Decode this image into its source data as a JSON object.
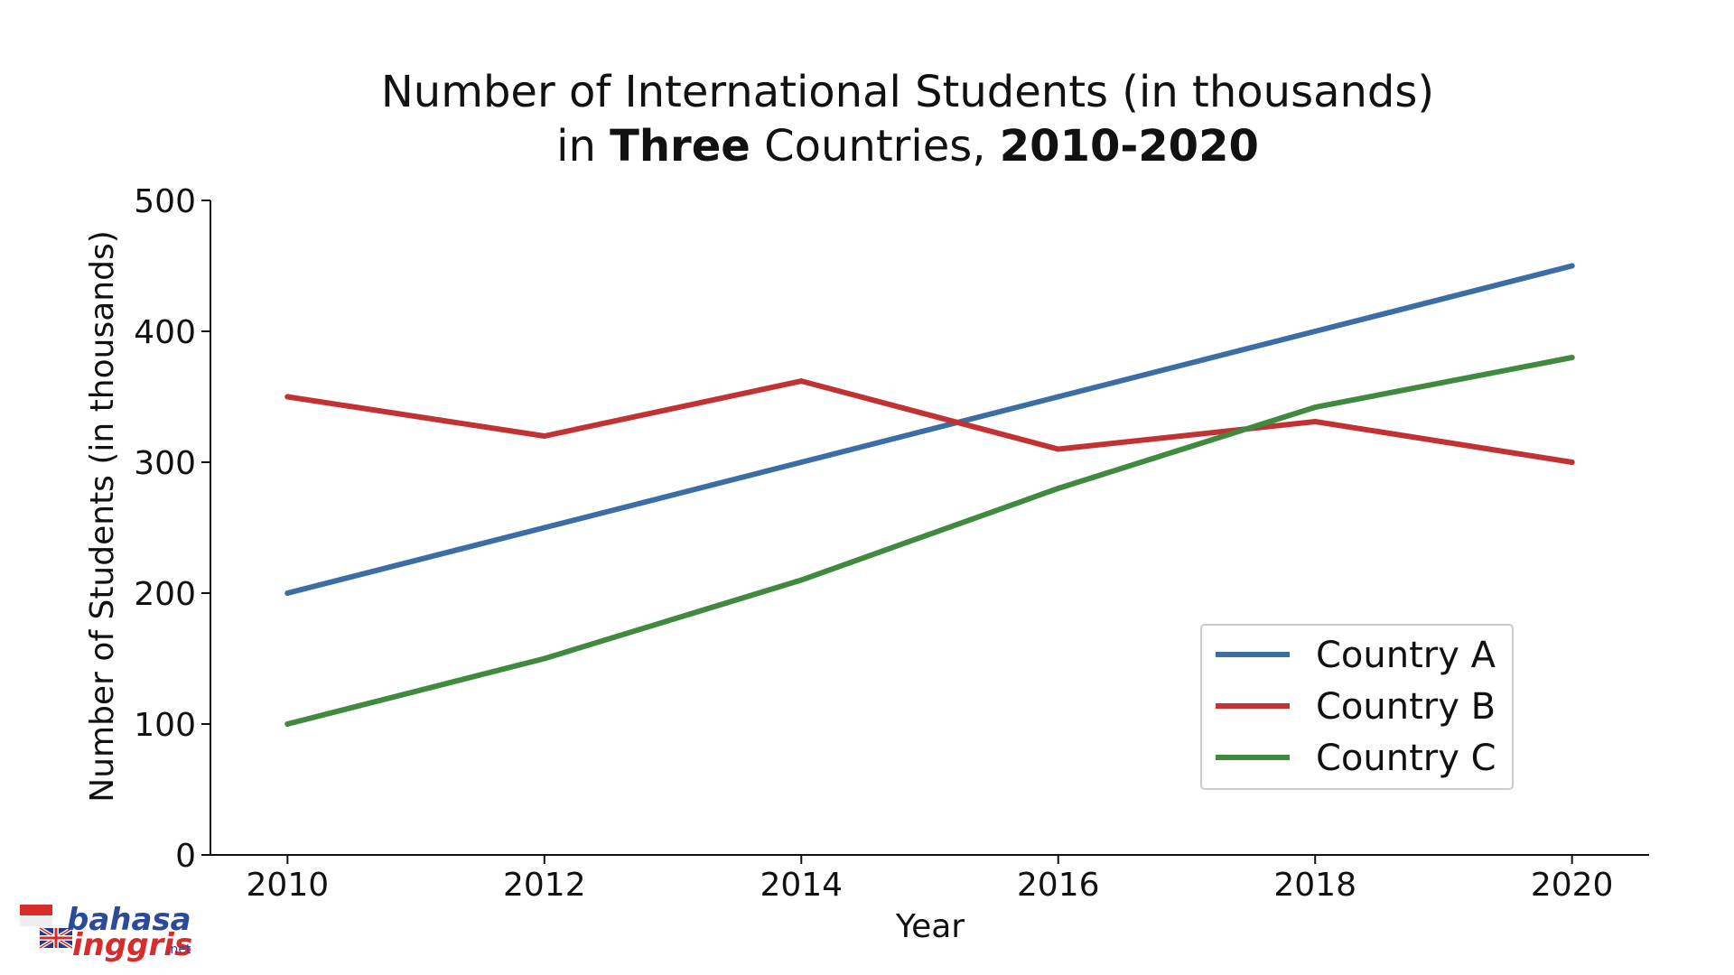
{
  "chart_data": {
    "type": "line",
    "title_line1": "Number of International Students (in thousands)",
    "title_line2_parts": [
      {
        "text": "in ",
        "bold": false
      },
      {
        "text": "Three",
        "bold": true
      },
      {
        "text": " Countries, ",
        "bold": false
      },
      {
        "text": "2010-2020",
        "bold": true
      }
    ],
    "xlabel": "Year",
    "ylabel": "Number of Students (in thousands)",
    "x": [
      2010,
      2012,
      2014,
      2016,
      2018,
      2020
    ],
    "x_ticks": [
      "2010",
      "2012",
      "2014",
      "2016",
      "2018",
      "2020"
    ],
    "xlim": [
      2009.4,
      2020.6
    ],
    "y_ticks": [
      "0",
      "100",
      "200",
      "300",
      "400",
      "500"
    ],
    "ylim": [
      0,
      500
    ],
    "grid": false,
    "legend_position": "lower-right",
    "series": [
      {
        "name": "Country A",
        "color": "#3a6ea5",
        "values": [
          200,
          250,
          300,
          350,
          400,
          450
        ]
      },
      {
        "name": "Country B",
        "color": "#c33232",
        "values": [
          350,
          320,
          362,
          310,
          331,
          300
        ]
      },
      {
        "name": "Country C",
        "color": "#3f8a3f",
        "values": [
          100,
          150,
          210,
          280,
          342,
          380
        ]
      }
    ]
  },
  "watermark": {
    "line1": "bahasa",
    "line2": "inggris",
    "suffix": ".net"
  }
}
